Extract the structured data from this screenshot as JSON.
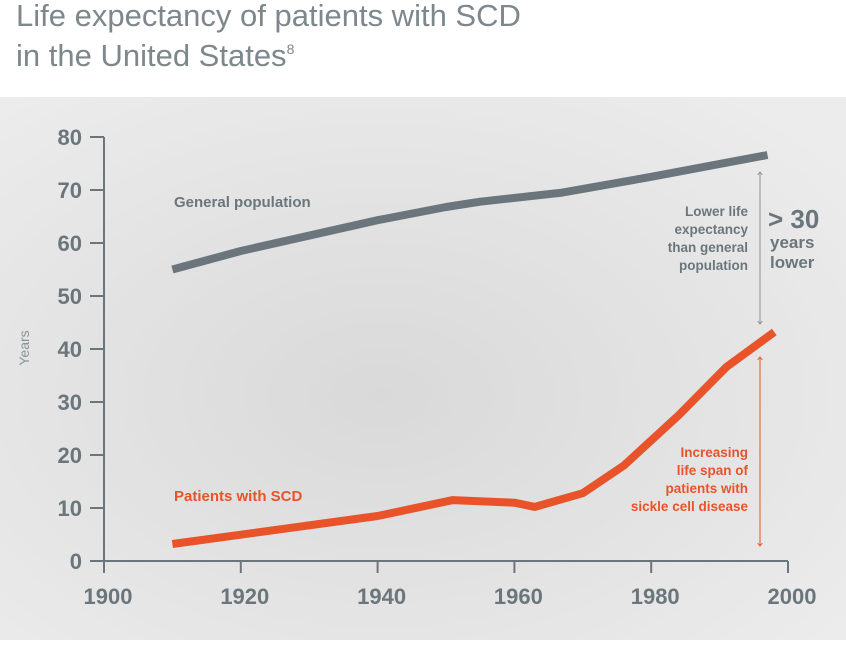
{
  "chart_data": {
    "type": "line",
    "title": {
      "lines": [
        "Life expectancy of patients with SCD",
        "in the United States"
      ],
      "superscript": "8"
    },
    "y_label": "Years",
    "xlim": [
      1900,
      2000
    ],
    "xticks": [
      1900,
      1920,
      1940,
      1960,
      1980,
      2000
    ],
    "ylim": [
      0,
      80
    ],
    "yticks": [
      0,
      10,
      20,
      30,
      40,
      50,
      60,
      70,
      80
    ],
    "series": [
      {
        "name": "General population",
        "color": "#6b767c",
        "x": [
          1910,
          1920,
          1940,
          1950,
          1955,
          1967,
          1980,
          1997
        ],
        "values": [
          55,
          58.5,
          64.3,
          66.8,
          67.8,
          69.5,
          72.5,
          76.6
        ]
      },
      {
        "name": "Patients with SCD",
        "color": "#e8532a",
        "x": [
          1910,
          1940,
          1951,
          1960,
          1963,
          1970,
          1976,
          1984,
          1991,
          1998
        ],
        "values": [
          3.2,
          8.5,
          11.5,
          11,
          10.2,
          12.8,
          18,
          27.5,
          36.6,
          43.2
        ]
      }
    ],
    "annotations": {
      "gap_text": [
        "Lower life",
        "expectancy",
        "than general",
        "population"
      ],
      "gap_big": "> 30",
      "gap_unit": [
        "years",
        "lower"
      ],
      "increase_text": [
        "Increasing",
        "life span of",
        "patients with",
        "sickle cell disease"
      ]
    }
  }
}
